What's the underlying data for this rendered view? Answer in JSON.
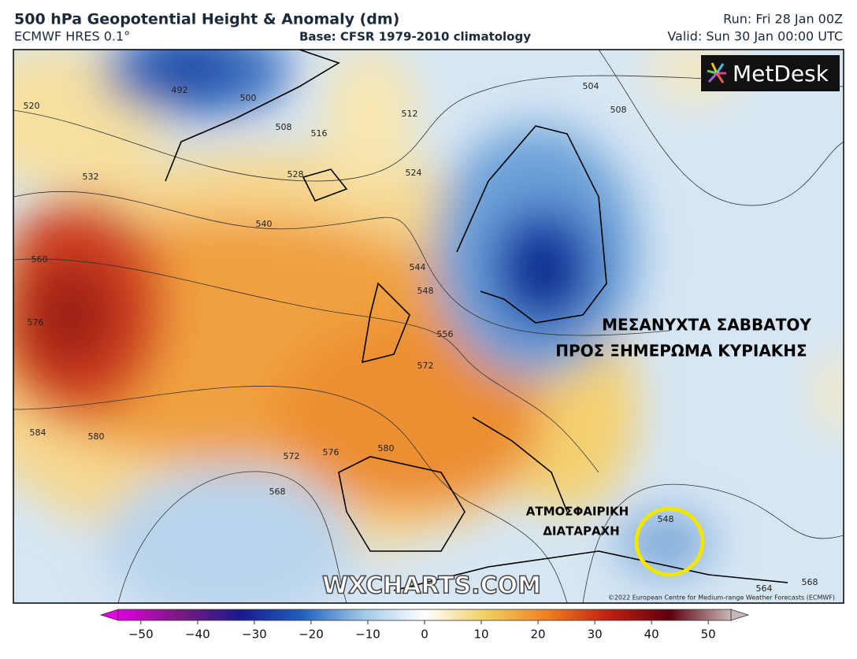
{
  "header": {
    "title": "500 hPa Geopotential Height & Anomaly (dm)",
    "model": "ECMWF HRES 0.1°",
    "base": "Base: CFSR 1979-2010 climatology",
    "run": "Run: Fri 28 Jan 00Z",
    "valid": "Valid: Sun 30 Jan 00:00 UTC"
  },
  "logo": "MetDesk",
  "watermark": "WXCHARTS.COM",
  "copyright": "©2022 European Centre for Medium-range Weather Forecasts (ECMWF)",
  "annotations": [
    "ΜΕΣΑΝΥΧΤΑ ΣΑΒΒΑΤΟΥ",
    "ΠΡΟΣ ΞΗΜΕΡΩΜΑ ΚΥΡΙΑΚΗΣ",
    "ΑΤΜΟΣΦΑΙΡΙΚΗ",
    "ΔΙΑΤΑΡΑΧΗ"
  ],
  "contour_labels": [
    "492",
    "500",
    "508",
    "516",
    "520",
    "532",
    "528",
    "540",
    "544",
    "548",
    "556",
    "560",
    "576",
    "572",
    "580",
    "584",
    "580",
    "572",
    "576",
    "568",
    "512",
    "524",
    "504",
    "508",
    "548",
    "564",
    "568"
  ],
  "colorbar": {
    "lim": [
      -54,
      54
    ],
    "ticks": [
      {
        "value": -50,
        "label": "−50"
      },
      {
        "value": -40,
        "label": "−40"
      },
      {
        "value": -30,
        "label": "−30"
      },
      {
        "value": -20,
        "label": "−20"
      },
      {
        "value": -10,
        "label": "−10"
      },
      0,
      10,
      20,
      30,
      40,
      50
    ]
  }
}
